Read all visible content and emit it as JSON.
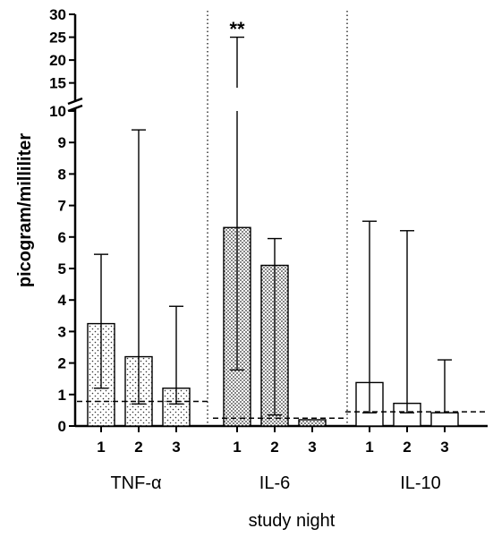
{
  "chart_data": {
    "type": "bar",
    "ylabel": "picogram/milliliter",
    "xlabel": "study night",
    "y_axis_lower": {
      "range": [
        0,
        10
      ],
      "ticks": [
        0,
        1,
        2,
        3,
        4,
        5,
        6,
        7,
        8,
        9,
        10
      ]
    },
    "y_axis_upper": {
      "range": [
        12,
        30
      ],
      "ticks": [
        15,
        20,
        25,
        30
      ]
    },
    "y_axis_break": true,
    "grid": false,
    "groups": [
      {
        "name": "TNF-α",
        "pattern": "dots",
        "reference_line": 0.78,
        "bars": [
          {
            "night": "1",
            "value": 3.25,
            "err_low": 1.2,
            "err_high": 5.45
          },
          {
            "night": "2",
            "value": 2.2,
            "err_low": 0.7,
            "err_high": 9.4
          },
          {
            "night": "3",
            "value": 1.2,
            "err_low": 0.7,
            "err_high": 3.8
          }
        ]
      },
      {
        "name": "IL-6",
        "pattern": "dense-dots",
        "reference_line": 0.25,
        "annotation": "**",
        "bars": [
          {
            "night": "1",
            "value": 6.3,
            "err_low": 1.78,
            "err_high": 25.0
          },
          {
            "night": "2",
            "value": 5.1,
            "err_low": 0.35,
            "err_high": 5.95
          },
          {
            "night": "3",
            "value": 0.2,
            "err_low": 0.2,
            "err_high": 0.2
          }
        ]
      },
      {
        "name": "IL-10",
        "pattern": "none",
        "reference_line": 0.45,
        "bars": [
          {
            "night": "1",
            "value": 1.38,
            "err_low": 0.42,
            "err_high": 6.5
          },
          {
            "night": "2",
            "value": 0.72,
            "err_low": 0.42,
            "err_high": 6.2
          },
          {
            "night": "3",
            "value": 0.42,
            "err_low": 0.42,
            "err_high": 2.1
          }
        ]
      }
    ]
  }
}
